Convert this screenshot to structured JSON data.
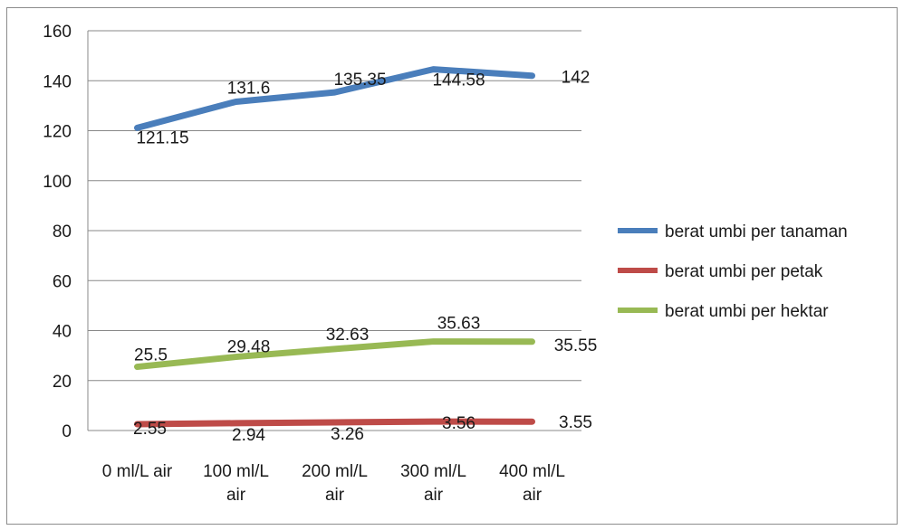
{
  "chart_data": {
    "type": "line",
    "title": "",
    "xlabel": "",
    "ylabel": "",
    "ylim": [
      0,
      160
    ],
    "yticks": [
      "0",
      "20",
      "40",
      "60",
      "80",
      "100",
      "120",
      "140",
      "160"
    ],
    "categories": [
      "0 ml/L air",
      "100 ml/L air",
      "200 ml/L air",
      "300 ml/L air",
      "400 ml/L air"
    ],
    "category_lines": [
      [
        "0 ml/L air"
      ],
      [
        "100 ml/L",
        "air"
      ],
      [
        "200 ml/L",
        "air"
      ],
      [
        "300 ml/L",
        "air"
      ],
      [
        "400 ml/L",
        "air"
      ]
    ],
    "grid": true,
    "legend_position": "right",
    "series": [
      {
        "name": "berat umbi per tanaman",
        "color": "#4a7ebb",
        "values": [
          121.15,
          131.6,
          135.35,
          144.58,
          142
        ],
        "labels": [
          "121.15",
          "131.6",
          "135.35",
          "144.58",
          "142"
        ]
      },
      {
        "name": "berat umbi per petak",
        "color": "#be4b48",
        "values": [
          2.55,
          2.94,
          3.26,
          3.56,
          3.55
        ],
        "labels": [
          "2.55",
          "2.94",
          "3.26",
          "3.56",
          "3.55"
        ]
      },
      {
        "name": "berat umbi per hektar",
        "color": "#98b954",
        "values": [
          25.5,
          29.48,
          32.63,
          35.63,
          35.55
        ],
        "labels": [
          "25.5",
          "29.48",
          "32.63",
          "35.63",
          "35.55"
        ]
      }
    ]
  }
}
